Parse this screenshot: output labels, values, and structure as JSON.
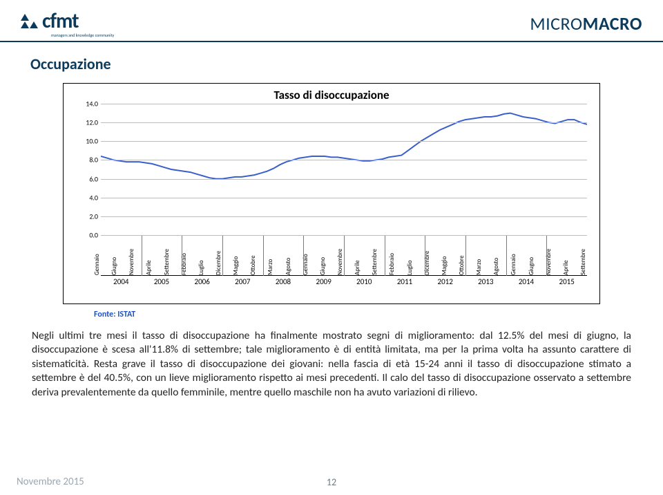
{
  "header": {
    "logo_text": "cfmt",
    "logo_sub": "managers and knowledge community",
    "brand_thin": "MICRO",
    "brand_bold": "MACRO"
  },
  "section_title": "Occupazione",
  "chart": {
    "title": "Tasso di disoccupazione",
    "type": "line",
    "ylim": [
      0,
      14
    ],
    "ytick_step": 2,
    "yticks": [
      "0.0",
      "2.0",
      "4.0",
      "6.0",
      "8.0",
      "10.0",
      "12.0",
      "14.0"
    ],
    "grid_color": "#bcbcbc",
    "line_color": "#3b5fca",
    "line_width": 2,
    "background_color": "#ffffff",
    "years": [
      "2004",
      "2005",
      "2006",
      "2007",
      "2008",
      "2009",
      "2010",
      "2011",
      "2012",
      "2013",
      "2014",
      "2015"
    ],
    "months_per_year": 4,
    "month_labels": [
      "Gennaio",
      "Giugno",
      "Novembre",
      "Aprile",
      "Settembre",
      "Febbraio",
      "Luglio",
      "Dicembre",
      "Maggio",
      "Ottobre",
      "Marzo",
      "Agosto",
      "Gennaio",
      "Giugno",
      "Novembre",
      "Aprile",
      "Settembre",
      "Febbraio",
      "Luglio",
      "Dicembre",
      "Maggio",
      "Ottobre",
      "Marzo",
      "Agosto",
      "Gennaio",
      "Giugno",
      "Novembre",
      "Aprile",
      "Settembre"
    ],
    "values": [
      8.4,
      8.2,
      8.0,
      7.9,
      7.8,
      7.8,
      7.8,
      7.7,
      7.6,
      7.4,
      7.2,
      7.0,
      6.9,
      6.8,
      6.7,
      6.5,
      6.3,
      6.1,
      6.0,
      6.0,
      6.1,
      6.2,
      6.2,
      6.3,
      6.4,
      6.6,
      6.8,
      7.1,
      7.5,
      7.8,
      8.0,
      8.2,
      8.3,
      8.4,
      8.4,
      8.4,
      8.3,
      8.3,
      8.2,
      8.1,
      8.0,
      7.9,
      7.9,
      8.0,
      8.1,
      8.3,
      8.4,
      8.5,
      9.0,
      9.5,
      10.0,
      10.4,
      10.8,
      11.2,
      11.5,
      11.8,
      12.1,
      12.3,
      12.4,
      12.5,
      12.6,
      12.6,
      12.7,
      12.9,
      13.0,
      12.8,
      12.6,
      12.5,
      12.4,
      12.2,
      12.0,
      11.9,
      12.1,
      12.3,
      12.3,
      12.0,
      11.8
    ]
  },
  "source_label": "Fonte: ISTAT",
  "body": "Negli ultimi tre mesi il tasso di disoccupazione ha finalmente mostrato segni di miglioramento: dal 12.5% del mesi di giugno, la disoccupazione è scesa all'11.8% di settembre; tale miglioramento è di entità limitata, ma per la prima volta ha assunto carattere di sistematicità. Resta grave il tasso di disoccupazione dei giovani: nella fascia di età 15-24 anni il tasso di disoccupazione stimato a settembre è del 40.5%, con un lieve miglioramento rispetto ai mesi precedenti. Il calo del tasso di disoccupazione osservato a settembre deriva prevalentemente da quello femminile, mentre quello maschile non ha avuto variazioni di rilievo.",
  "footer": {
    "date": "Novembre 2015",
    "page": "12"
  },
  "colors": {
    "brand": "#0b3a5c",
    "source": "#1f52c9",
    "footer": "#9aa8b3"
  }
}
